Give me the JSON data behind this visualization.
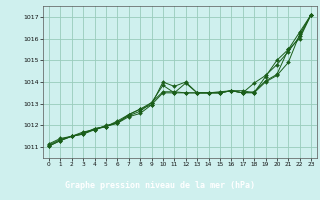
{
  "title": "Graphe pression niveau de la mer (hPa)",
  "bg_color": "#cff0ee",
  "plot_bg_color": "#cff0ee",
  "label_bg_color": "#2d6e2d",
  "label_text_color": "#ffffff",
  "grid_color": "#99ccbb",
  "line_color": "#1a5e1a",
  "marker_color": "#1a5e1a",
  "xlim": [
    -0.5,
    23.5
  ],
  "ylim": [
    1010.5,
    1017.5
  ],
  "yticks": [
    1011,
    1012,
    1013,
    1014,
    1015,
    1016,
    1017
  ],
  "xticks": [
    0,
    1,
    2,
    3,
    4,
    5,
    6,
    7,
    8,
    9,
    10,
    11,
    12,
    13,
    14,
    15,
    16,
    17,
    18,
    19,
    20,
    21,
    22,
    23
  ],
  "series": [
    [
      1011.15,
      1011.4,
      1011.5,
      1011.7,
      1011.8,
      1012.0,
      1012.1,
      1012.4,
      1012.55,
      1012.95,
      1014.0,
      1013.8,
      1014.0,
      1013.5,
      1013.5,
      1013.5,
      1013.6,
      1013.6,
      1013.5,
      1014.0,
      1014.3,
      1014.9,
      1016.2,
      1017.1
    ],
    [
      1011.1,
      1011.35,
      1011.5,
      1011.65,
      1011.85,
      1011.95,
      1012.15,
      1012.45,
      1012.65,
      1013.05,
      1013.55,
      1013.55,
      1013.5,
      1013.5,
      1013.5,
      1013.5,
      1013.6,
      1013.5,
      1013.55,
      1014.05,
      1014.35,
      1015.5,
      1016.3,
      1017.1
    ],
    [
      1011.05,
      1011.3,
      1011.5,
      1011.6,
      1011.8,
      1011.95,
      1012.2,
      1012.5,
      1012.75,
      1012.95,
      1013.5,
      1013.5,
      1013.5,
      1013.5,
      1013.5,
      1013.5,
      1013.6,
      1013.5,
      1013.5,
      1014.25,
      1015.0,
      1015.5,
      1016.0,
      1017.1
    ],
    [
      1011.05,
      1011.3,
      1011.5,
      1011.6,
      1011.85,
      1011.95,
      1012.1,
      1012.5,
      1012.75,
      1013.05,
      1013.85,
      1013.5,
      1013.95,
      1013.5,
      1013.5,
      1013.55,
      1013.6,
      1013.5,
      1013.95,
      1014.3,
      1014.8,
      1015.4,
      1016.1,
      1017.1
    ]
  ]
}
